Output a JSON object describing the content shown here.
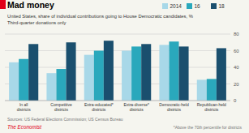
{
  "chart_data": {
    "type": "bar",
    "title": "Mad money",
    "subtitle": "United States, share of individual contributions going to House Democratic candidates, %",
    "annotations": [
      "Third-quarter donations only",
      "Sources: US Federal Elections Commission; US Census Bureau",
      "*Above the 70th percentile for districts",
      "The Economist"
    ],
    "categories": [
      "In all\ndistricts",
      "Competitive\ndistricts",
      "Extra-educated*\ndistricts",
      "Extra-diverse*\ndistricts",
      "Democratic-held\ndistricts",
      "Republican-held\ndistricts"
    ],
    "series": [
      {
        "name": "2014",
        "color": "#a8d8e8",
        "values": [
          46,
          33,
          55,
          60,
          67,
          25
        ]
      },
      {
        "name": "16",
        "color": "#2aa8bc",
        "values": [
          50,
          38,
          60,
          65,
          71,
          26
        ]
      },
      {
        "name": "18",
        "color": "#1a4f6e",
        "values": [
          68,
          70,
          72,
          68,
          65,
          63
        ]
      }
    ],
    "ylim": [
      0,
      80
    ],
    "yticks": [
      0,
      20,
      40,
      60,
      80
    ],
    "grid": true,
    "legend": "top-right"
  }
}
